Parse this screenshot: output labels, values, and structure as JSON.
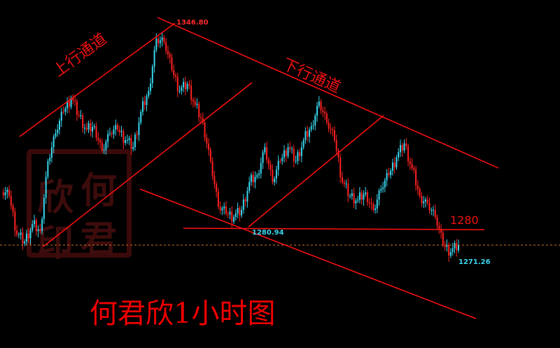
{
  "chart_data": {
    "type": "candlestick",
    "title": "何君欣1小时图",
    "up_color": "#39d6ee",
    "down_color": "#ff2020",
    "closes": [
      1292.7,
      1291.5,
      1278.8,
      1276.5,
      1282.3,
      1280.0,
      1303.0,
      1312.2,
      1319.2,
      1323.8,
      1318.0,
      1313.4,
      1314.5,
      1306.5,
      1312.2,
      1313.4,
      1309.9,
      1307.6,
      1319.2,
      1326.1,
      1343.3,
      1342.2,
      1333.0,
      1326.1,
      1328.4,
      1321.5,
      1315.7,
      1303.0,
      1288.0,
      1285.7,
      1284.6,
      1286.9,
      1296.1,
      1298.4,
      1307.6,
      1296.1,
      1303.0,
      1307.6,
      1303.0,
      1309.9,
      1314.5,
      1322.6,
      1315.7,
      1309.9,
      1296.1,
      1291.5,
      1290.3,
      1292.7,
      1286.9,
      1293.8,
      1298.4,
      1304.2,
      1308.8,
      1300.7,
      1291.5,
      1289.2,
      1284.6,
      1275.4,
      1273.1,
      1275.4
    ],
    "ylim": [
      1247,
      1356
    ],
    "grid": false,
    "annotations": {
      "high_label": "1346.80",
      "low_label_1": "1280.94",
      "low_label_2": "1271.26",
      "level_label": "1280",
      "up_channel": "上行通道",
      "down_channel": "下行通道"
    },
    "level_line": 1280,
    "current_price_line_color": "#c8782a",
    "line_color": "#ff1010"
  },
  "watermark": {
    "text": "何君欣印"
  }
}
